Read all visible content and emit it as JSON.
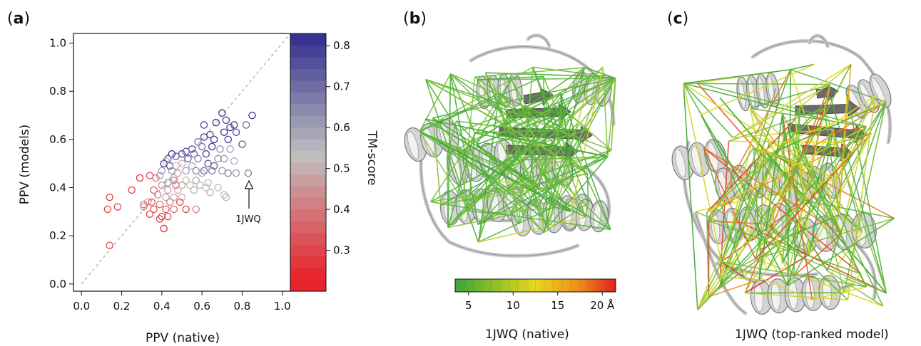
{
  "panels": {
    "a": {
      "label": "a"
    },
    "b": {
      "label": "b",
      "caption": "1JWQ (native)"
    },
    "c": {
      "label": "c",
      "caption": "1JWQ (top-ranked model)"
    }
  },
  "annotation": {
    "text": "1JWQ"
  },
  "colorbar_tm": {
    "title": "TM-score",
    "ticks": [
      "0.8",
      "0.7",
      "0.6",
      "0.5",
      "0.4",
      "0.3"
    ],
    "range": [
      0.2,
      0.83
    ]
  },
  "colorbar_dist": {
    "ticks": [
      "5",
      "10",
      "15",
      "20 Å"
    ],
    "range": [
      3.5,
      21.5
    ]
  },
  "colors": {
    "high_tm": "#2e2a8c",
    "mid_tm": "#c0c0c0",
    "low_tm": "#e8232a",
    "short_dist": "#3aa836",
    "mid_dist": "#e8d81e",
    "long_dist": "#e02020"
  },
  "chart_data": {
    "type": "scatter",
    "title": "",
    "xlabel": "PPV (native)",
    "ylabel": "PPV (models)",
    "xlim": [
      -0.04,
      1.04
    ],
    "ylim": [
      -0.03,
      1.04
    ],
    "xticks": [
      "0.0",
      "0.2",
      "0.4",
      "0.6",
      "0.8",
      "1.0"
    ],
    "yticks": [
      "0.0",
      "0.2",
      "0.4",
      "0.6",
      "0.8",
      "1.0"
    ],
    "diagonal": true,
    "color_variable": "TM-score",
    "points": [
      {
        "x": 0.85,
        "y": 0.7,
        "tm": 0.8
      },
      {
        "x": 0.7,
        "y": 0.71,
        "tm": 0.8
      },
      {
        "x": 0.72,
        "y": 0.68,
        "tm": 0.78
      },
      {
        "x": 0.67,
        "y": 0.67,
        "tm": 0.8
      },
      {
        "x": 0.61,
        "y": 0.66,
        "tm": 0.76
      },
      {
        "x": 0.74,
        "y": 0.65,
        "tm": 0.8
      },
      {
        "x": 0.76,
        "y": 0.66,
        "tm": 0.79
      },
      {
        "x": 0.82,
        "y": 0.66,
        "tm": 0.7
      },
      {
        "x": 0.64,
        "y": 0.62,
        "tm": 0.78
      },
      {
        "x": 0.71,
        "y": 0.63,
        "tm": 0.8
      },
      {
        "x": 0.77,
        "y": 0.63,
        "tm": 0.76
      },
      {
        "x": 0.61,
        "y": 0.61,
        "tm": 0.77
      },
      {
        "x": 0.66,
        "y": 0.6,
        "tm": 0.79
      },
      {
        "x": 0.73,
        "y": 0.6,
        "tm": 0.77
      },
      {
        "x": 0.8,
        "y": 0.58,
        "tm": 0.74
      },
      {
        "x": 0.58,
        "y": 0.59,
        "tm": 0.68
      },
      {
        "x": 0.65,
        "y": 0.57,
        "tm": 0.78
      },
      {
        "x": 0.55,
        "y": 0.56,
        "tm": 0.73
      },
      {
        "x": 0.6,
        "y": 0.57,
        "tm": 0.68
      },
      {
        "x": 0.69,
        "y": 0.56,
        "tm": 0.62
      },
      {
        "x": 0.74,
        "y": 0.56,
        "tm": 0.58
      },
      {
        "x": 0.62,
        "y": 0.54,
        "tm": 0.78
      },
      {
        "x": 0.52,
        "y": 0.55,
        "tm": 0.73
      },
      {
        "x": 0.56,
        "y": 0.54,
        "tm": 0.7
      },
      {
        "x": 0.45,
        "y": 0.54,
        "tm": 0.8
      },
      {
        "x": 0.5,
        "y": 0.54,
        "tm": 0.77
      },
      {
        "x": 0.47,
        "y": 0.53,
        "tm": 0.72
      },
      {
        "x": 0.43,
        "y": 0.52,
        "tm": 0.74
      },
      {
        "x": 0.53,
        "y": 0.52,
        "tm": 0.73
      },
      {
        "x": 0.58,
        "y": 0.52,
        "tm": 0.65
      },
      {
        "x": 0.71,
        "y": 0.52,
        "tm": 0.6
      },
      {
        "x": 0.68,
        "y": 0.52,
        "tm": 0.62
      },
      {
        "x": 0.76,
        "y": 0.51,
        "tm": 0.56
      },
      {
        "x": 0.41,
        "y": 0.5,
        "tm": 0.8
      },
      {
        "x": 0.44,
        "y": 0.49,
        "tm": 0.78
      },
      {
        "x": 0.5,
        "y": 0.5,
        "tm": 0.5
      },
      {
        "x": 0.55,
        "y": 0.49,
        "tm": 0.57
      },
      {
        "x": 0.63,
        "y": 0.5,
        "tm": 0.74
      },
      {
        "x": 0.66,
        "y": 0.49,
        "tm": 0.72
      },
      {
        "x": 0.42,
        "y": 0.51,
        "tm": 0.47
      },
      {
        "x": 0.47,
        "y": 0.49,
        "tm": 0.52
      },
      {
        "x": 0.4,
        "y": 0.47,
        "tm": 0.6
      },
      {
        "x": 0.45,
        "y": 0.47,
        "tm": 0.62
      },
      {
        "x": 0.52,
        "y": 0.47,
        "tm": 0.6
      },
      {
        "x": 0.57,
        "y": 0.47,
        "tm": 0.64
      },
      {
        "x": 0.61,
        "y": 0.47,
        "tm": 0.69
      },
      {
        "x": 0.65,
        "y": 0.47,
        "tm": 0.66
      },
      {
        "x": 0.7,
        "y": 0.47,
        "tm": 0.61
      },
      {
        "x": 0.73,
        "y": 0.46,
        "tm": 0.64
      },
      {
        "x": 0.77,
        "y": 0.46,
        "tm": 0.6
      },
      {
        "x": 0.83,
        "y": 0.46,
        "tm": 0.66
      },
      {
        "x": 0.6,
        "y": 0.46,
        "tm": 0.56
      },
      {
        "x": 0.48,
        "y": 0.46,
        "tm": 0.44
      },
      {
        "x": 0.39,
        "y": 0.45,
        "tm": 0.58
      },
      {
        "x": 0.46,
        "y": 0.44,
        "tm": 0.53
      },
      {
        "x": 0.34,
        "y": 0.45,
        "tm": 0.3
      },
      {
        "x": 0.29,
        "y": 0.44,
        "tm": 0.26
      },
      {
        "x": 0.37,
        "y": 0.44,
        "tm": 0.38
      },
      {
        "x": 0.46,
        "y": 0.43,
        "tm": 0.4
      },
      {
        "x": 0.52,
        "y": 0.43,
        "tm": 0.5
      },
      {
        "x": 0.57,
        "y": 0.43,
        "tm": 0.56
      },
      {
        "x": 0.43,
        "y": 0.42,
        "tm": 0.62
      },
      {
        "x": 0.4,
        "y": 0.41,
        "tm": 0.42
      },
      {
        "x": 0.47,
        "y": 0.41,
        "tm": 0.36
      },
      {
        "x": 0.5,
        "y": 0.41,
        "tm": 0.46
      },
      {
        "x": 0.54,
        "y": 0.41,
        "tm": 0.51
      },
      {
        "x": 0.59,
        "y": 0.41,
        "tm": 0.54
      },
      {
        "x": 0.63,
        "y": 0.42,
        "tm": 0.51
      },
      {
        "x": 0.62,
        "y": 0.4,
        "tm": 0.52
      },
      {
        "x": 0.68,
        "y": 0.4,
        "tm": 0.53
      },
      {
        "x": 0.36,
        "y": 0.39,
        "tm": 0.32
      },
      {
        "x": 0.43,
        "y": 0.39,
        "tm": 0.45
      },
      {
        "x": 0.48,
        "y": 0.39,
        "tm": 0.48
      },
      {
        "x": 0.56,
        "y": 0.39,
        "tm": 0.55
      },
      {
        "x": 0.64,
        "y": 0.38,
        "tm": 0.47
      },
      {
        "x": 0.71,
        "y": 0.37,
        "tm": 0.53
      },
      {
        "x": 0.72,
        "y": 0.36,
        "tm": 0.55
      },
      {
        "x": 0.25,
        "y": 0.39,
        "tm": 0.28
      },
      {
        "x": 0.33,
        "y": 0.34,
        "tm": 0.44
      },
      {
        "x": 0.38,
        "y": 0.37,
        "tm": 0.4
      },
      {
        "x": 0.42,
        "y": 0.36,
        "tm": 0.46
      },
      {
        "x": 0.46,
        "y": 0.36,
        "tm": 0.47
      },
      {
        "x": 0.5,
        "y": 0.36,
        "tm": 0.5
      },
      {
        "x": 0.35,
        "y": 0.34,
        "tm": 0.33
      },
      {
        "x": 0.39,
        "y": 0.33,
        "tm": 0.36
      },
      {
        "x": 0.44,
        "y": 0.34,
        "tm": 0.38
      },
      {
        "x": 0.49,
        "y": 0.34,
        "tm": 0.28
      },
      {
        "x": 0.31,
        "y": 0.32,
        "tm": 0.42
      },
      {
        "x": 0.36,
        "y": 0.31,
        "tm": 0.31
      },
      {
        "x": 0.42,
        "y": 0.31,
        "tm": 0.32
      },
      {
        "x": 0.46,
        "y": 0.31,
        "tm": 0.35
      },
      {
        "x": 0.52,
        "y": 0.31,
        "tm": 0.28
      },
      {
        "x": 0.57,
        "y": 0.31,
        "tm": 0.4
      },
      {
        "x": 0.14,
        "y": 0.36,
        "tm": 0.26
      },
      {
        "x": 0.13,
        "y": 0.31,
        "tm": 0.28
      },
      {
        "x": 0.18,
        "y": 0.32,
        "tm": 0.27
      },
      {
        "x": 0.31,
        "y": 0.33,
        "tm": 0.36
      },
      {
        "x": 0.4,
        "y": 0.28,
        "tm": 0.27
      },
      {
        "x": 0.43,
        "y": 0.28,
        "tm": 0.29
      },
      {
        "x": 0.34,
        "y": 0.29,
        "tm": 0.28
      },
      {
        "x": 0.39,
        "y": 0.27,
        "tm": 0.3
      },
      {
        "x": 0.41,
        "y": 0.23,
        "tm": 0.24
      },
      {
        "x": 0.14,
        "y": 0.16,
        "tm": 0.28
      }
    ]
  }
}
